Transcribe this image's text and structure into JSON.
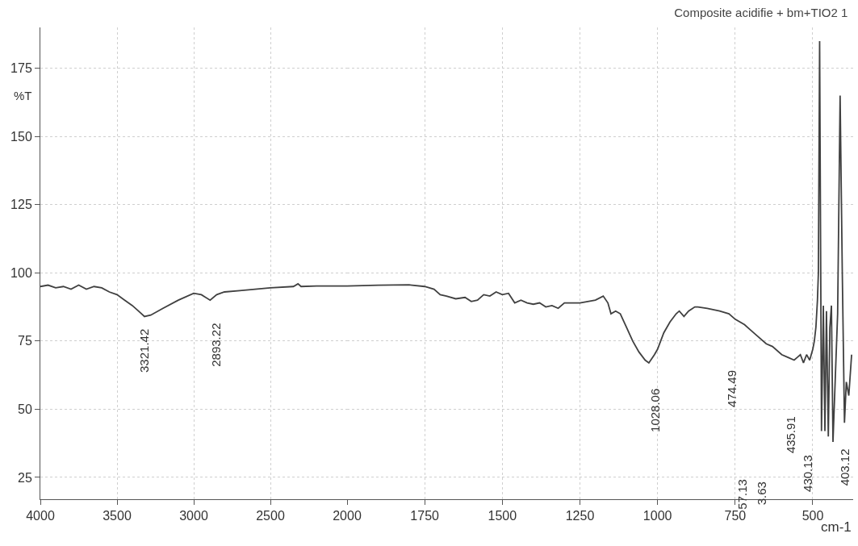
{
  "chart_data": [
    {
      "type": "line",
      "ylabel": "%T",
      "x": [
        4000,
        3950,
        3900,
        3850,
        3800,
        3750,
        3700,
        3650,
        3600,
        3550,
        3500,
        3450,
        3400,
        3350,
        3321,
        3280,
        3200,
        3100,
        3000,
        2950,
        2893,
        2850,
        2800,
        2700,
        2500,
        2350,
        2320,
        2300,
        2200,
        2000
      ],
      "series": [
        {
          "color": "#404040",
          "values": [
            95,
            95.5,
            94.5,
            95,
            94,
            95.5,
            94,
            95,
            94.5,
            93,
            92,
            90,
            88,
            85.5,
            84,
            84.5,
            87,
            90,
            92.5,
            92,
            90,
            92,
            93,
            93.5,
            94.5,
            95,
            96,
            95,
            95.2,
            95.2
          ]
        }
      ],
      "xlim": [
        4000,
        2000
      ],
      "ylim": [
        17,
        190
      ],
      "xticks": [
        4000,
        3500,
        3000,
        2500,
        2000
      ],
      "yticks": [
        25,
        50,
        75,
        100,
        125,
        150,
        175
      ],
      "grid": true,
      "line_style": "solid",
      "annotations": [
        "3321.42",
        "2893.22"
      ]
    },
    {
      "type": "line",
      "title": "Composite acidifie + bm+TIO2 1",
      "xlabel": "cm-1",
      "x": [
        2000,
        1900,
        1800,
        1750,
        1720,
        1700,
        1680,
        1650,
        1620,
        1600,
        1580,
        1560,
        1540,
        1520,
        1500,
        1480,
        1460,
        1440,
        1420,
        1400,
        1380,
        1360,
        1340,
        1320,
        1300,
        1250,
        1200,
        1175,
        1160,
        1150,
        1135,
        1120,
        1100,
        1080,
        1060,
        1040,
        1028,
        1010,
        1000,
        980,
        960,
        940,
        930,
        915,
        900,
        880,
        870,
        840,
        800,
        770,
        750,
        720,
        700,
        680,
        650,
        630,
        600,
        580,
        560,
        550,
        540,
        530,
        520,
        510,
        500,
        495,
        490,
        485,
        482,
        478,
        472,
        466,
        461,
        456,
        450,
        445,
        440,
        435,
        428,
        420,
        412,
        405,
        398,
        392,
        384,
        375
      ],
      "series": [
        {
          "color": "#404040",
          "values": [
            95.2,
            95.5,
            95.6,
            95,
            94,
            92,
            91.5,
            90.5,
            91,
            89.5,
            90,
            92,
            91.5,
            93,
            92,
            92.5,
            89,
            90,
            89,
            88.5,
            89,
            87.5,
            88,
            87,
            89,
            89,
            90,
            91.5,
            89,
            85,
            86,
            85,
            80,
            75,
            71,
            68,
            67,
            70,
            72,
            78,
            82,
            85,
            86,
            84,
            86,
            87.5,
            87.5,
            87,
            86,
            85,
            83,
            81,
            79,
            77,
            74,
            73,
            70,
            69,
            68,
            69,
            70,
            67,
            70,
            68,
            72,
            75,
            80,
            90,
            100,
            185,
            42,
            88,
            42,
            86,
            40,
            80,
            88,
            38,
            60,
            85,
            165,
            100,
            45,
            60,
            55,
            70
          ]
        }
      ],
      "xlim": [
        2000,
        370
      ],
      "ylim": [
        17,
        190
      ],
      "xticks": [
        1750,
        1500,
        1250,
        1000,
        750,
        500
      ],
      "yticks": [
        25,
        50,
        75,
        100,
        125,
        150,
        175
      ],
      "grid": true,
      "line_style": "solid",
      "tick_labels": "x",
      "annotations": [
        "1028.06",
        "474.49",
        "435.91",
        "430.13",
        "403.12",
        "57.13",
        "3.63"
      ]
    }
  ]
}
